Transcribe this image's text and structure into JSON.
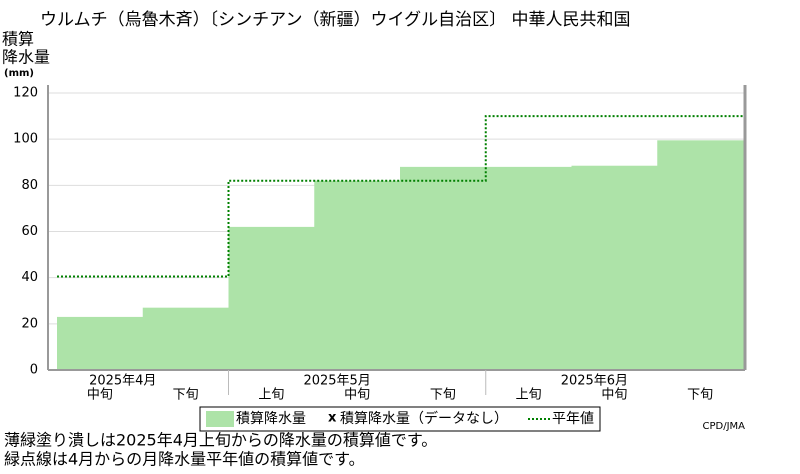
{
  "chart_data": {
    "type": "step_area",
    "title": "ウルムチ（烏魯木斉）〔シンチアン（新疆）ウイグル自治区〕 中華人民共和国",
    "y_label": [
      "積算",
      "降水量"
    ],
    "y_unit": "(mm)",
    "ylim": [
      0,
      120
    ],
    "yticks": [
      0,
      20,
      40,
      60,
      80,
      100,
      120
    ],
    "grid": true,
    "groups": [
      {
        "label": "2025年4月",
        "categories": [
          "中旬",
          "下旬"
        ]
      },
      {
        "label": "2025年5月",
        "categories": [
          "上旬",
          "中旬",
          "下旬"
        ]
      },
      {
        "label": "2025年6月",
        "categories": [
          "上旬",
          "中旬",
          "下旬"
        ]
      }
    ],
    "series": [
      {
        "name": "積算降水量",
        "color": "#ade3a8",
        "values": [
          23,
          27,
          62,
          82,
          88,
          88,
          88.5,
          99.5
        ]
      },
      {
        "name": "平年値",
        "color": "#008000",
        "style": "dotted",
        "values": [
          40.5,
          40.5,
          82,
          82,
          82,
          110,
          110,
          110
        ]
      }
    ],
    "no_data": {
      "marker": "x",
      "name": "積算降水量（データなし）"
    },
    "credit": "CPD/JMA",
    "notes": [
      "薄緑塗り潰しは2025年4月上旬からの降水量の積算値です。",
      "緑点線は4月からの月降水量平年値の積算値です。"
    ]
  }
}
